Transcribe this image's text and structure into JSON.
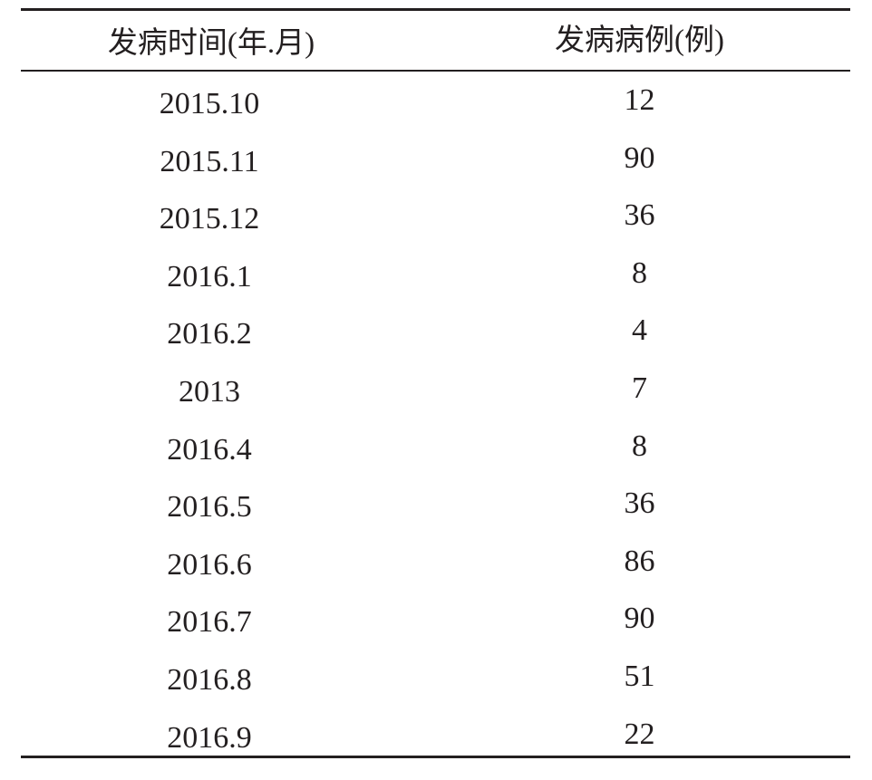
{
  "table": {
    "headers": [
      "发病时间(年.月)",
      "发病病例(例)"
    ],
    "rows": [
      {
        "time": "2015.10",
        "cases": "12"
      },
      {
        "time": "2015.11",
        "cases": "90"
      },
      {
        "time": "2015.12",
        "cases": "36"
      },
      {
        "time": "2016.1",
        "cases": "8"
      },
      {
        "time": "2016.2",
        "cases": "4"
      },
      {
        "time": "2013",
        "cases": "7"
      },
      {
        "time": "2016.4",
        "cases": "8"
      },
      {
        "time": "2016.5",
        "cases": "36"
      },
      {
        "time": "2016.6",
        "cases": "86"
      },
      {
        "time": "2016.7",
        "cases": "90"
      },
      {
        "time": "2016.8",
        "cases": "51"
      },
      {
        "time": "2016.9",
        "cases": "22"
      }
    ]
  }
}
